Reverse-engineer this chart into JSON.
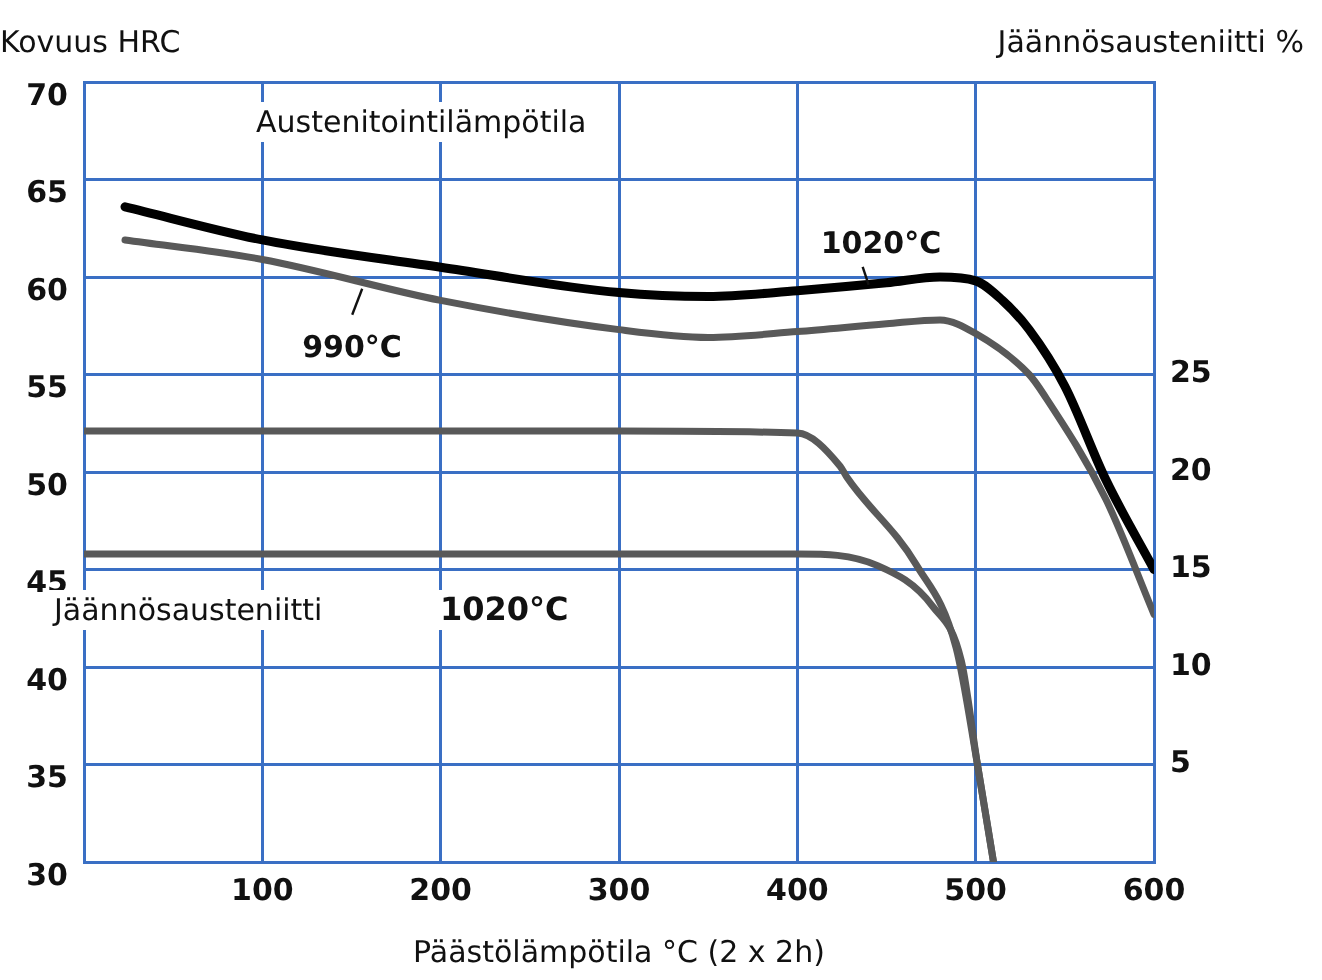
{
  "chart_data": {
    "type": "line",
    "xlabel": "Päästölämpötila °C (2 x 2h)",
    "ylabel": "Kovuus HRC",
    "y2label": "Jäännösausteniitti %",
    "xlim": [
      0,
      600
    ],
    "xticks": [
      100,
      200,
      300,
      400,
      500,
      600
    ],
    "ylim": [
      30,
      70
    ],
    "yticks": [
      30,
      35,
      40,
      45,
      50,
      55,
      60,
      65,
      70
    ],
    "y2lim": [
      0,
      40
    ],
    "y2ticks": [
      5,
      10,
      15,
      20,
      25
    ],
    "grid": true,
    "legend": false,
    "marker": "none",
    "line_style": "solid",
    "series": [
      {
        "color": "#000000",
        "x": [
          23,
          100,
          200,
          300,
          350,
          400,
          450,
          480,
          500,
          515,
          530,
          550,
          573,
          600
        ],
        "values": [
          63.6,
          61.9,
          60.5,
          59.2,
          59.0,
          59.3,
          59.7,
          60.0,
          59.8,
          58.8,
          57.3,
          54.4,
          49.6,
          45.0
        ]
      },
      {
        "color": "#595959",
        "x": [
          23,
          100,
          200,
          300,
          350,
          400,
          450,
          480,
          500,
          530,
          538,
          573,
          600
        ],
        "values": [
          61.9,
          60.9,
          58.8,
          57.3,
          56.9,
          57.2,
          57.6,
          57.8,
          57.1,
          55.0,
          54.0,
          48.6,
          42.7
        ]
      },
      {
        "color": "#595959",
        "axis": "y2",
        "x": [
          0,
          100,
          200,
          300,
          400,
          424,
          428,
          467,
          489,
          501,
          510
        ],
        "values": [
          22.1,
          22.1,
          22.1,
          22.1,
          22.0,
          20.3,
          19.7,
          15.2,
          11.0,
          5.0,
          0
        ]
      },
      {
        "color": "#595959",
        "axis": "y2",
        "x": [
          0,
          100,
          200,
          300,
          400,
          445,
          476,
          492,
          501,
          510
        ],
        "values": [
          15.8,
          15.8,
          15.8,
          15.8,
          15.8,
          15.2,
          13.1,
          10.3,
          5.0,
          0
        ]
      }
    ],
    "annotations": [
      "Austenitointilämpötila",
      "Jäännösausteniitti",
      "1020°C",
      {
        "text": "1020°C",
        "x": 440,
        "y": 59.6
      },
      {
        "text": "990°C",
        "x": 156,
        "y": 59.4
      }
    ]
  }
}
